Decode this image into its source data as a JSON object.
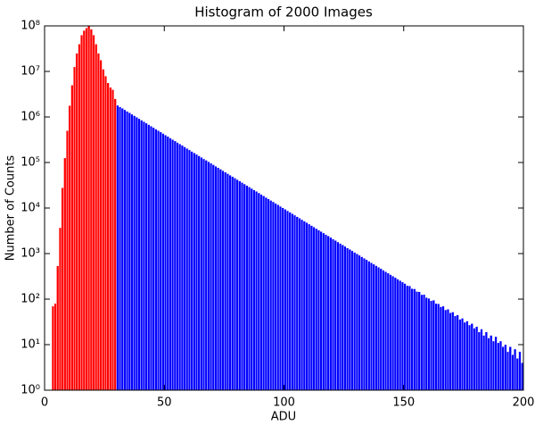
{
  "chart_data": {
    "type": "histogram",
    "title": "Histogram of 2000 Images",
    "xlabel": "ADU",
    "ylabel": "Number of Counts",
    "logy": true,
    "grid": false,
    "xlim": [
      0,
      200
    ],
    "xticks": [
      0,
      50,
      100,
      150,
      200
    ],
    "ylim": [
      1,
      100000000
    ],
    "yticks": [
      {
        "value": 1,
        "label": "10⁰"
      },
      {
        "value": 10,
        "label": "10¹"
      },
      {
        "value": 100,
        "label": "10²"
      },
      {
        "value": 1000,
        "label": "10³"
      },
      {
        "value": 10000,
        "label": "10⁴"
      },
      {
        "value": 100000,
        "label": "10⁵"
      },
      {
        "value": 1000000,
        "label": "10⁶"
      },
      {
        "value": 10000000,
        "label": "10⁷"
      },
      {
        "value": 100000000,
        "label": "10⁸"
      }
    ],
    "series": [
      {
        "color": "#ff0000",
        "bins": [
          3,
          4,
          5,
          6,
          7,
          8,
          9,
          10,
          11,
          12,
          13,
          14,
          15,
          16,
          17,
          18,
          19,
          20,
          21,
          22,
          23,
          24,
          25,
          26,
          27,
          28,
          29,
          30
        ],
        "counts": [
          70,
          80,
          540,
          3700,
          28000,
          126000,
          500000,
          1780000,
          5000000,
          12600000,
          25100000,
          39800000,
          63100000,
          79400000,
          90000000,
          100000000,
          85000000,
          63100000,
          39800000,
          25100000,
          17800000,
          11200000,
          7940000,
          5620000,
          4470000,
          3980000,
          2510000
        ]
      },
      {
        "color": "#0000ff",
        "bins": [
          30,
          31,
          32,
          33,
          34,
          35,
          36,
          37,
          38,
          39,
          40,
          41,
          42,
          43,
          44,
          45,
          46,
          47,
          48,
          49,
          50,
          51,
          52,
          53,
          54,
          55,
          56,
          57,
          58,
          59,
          60,
          61,
          62,
          63,
          64,
          65,
          66,
          67,
          68,
          69,
          70,
          71,
          72,
          73,
          74,
          75,
          76,
          77,
          78,
          79,
          80,
          81,
          82,
          83,
          84,
          85,
          86,
          87,
          88,
          89,
          90,
          91,
          92,
          93,
          94,
          95,
          96,
          97,
          98,
          99,
          100,
          101,
          102,
          103,
          104,
          105,
          106,
          107,
          108,
          109,
          110,
          111,
          112,
          113,
          114,
          115,
          116,
          117,
          118,
          119,
          120,
          121,
          122,
          123,
          124,
          125,
          126,
          127,
          128,
          129,
          130,
          131,
          132,
          133,
          134,
          135,
          136,
          137,
          138,
          139,
          140,
          141,
          142,
          143,
          144,
          145,
          146,
          147,
          148,
          149,
          150,
          151,
          152,
          153,
          154,
          155,
          156,
          157,
          158,
          159,
          160,
          161,
          162,
          163,
          164,
          165,
          166,
          167,
          168,
          169,
          170,
          171,
          172,
          173,
          174,
          175,
          176,
          177,
          178,
          179,
          180,
          181,
          182,
          183,
          184,
          185,
          186,
          187,
          188,
          189,
          190,
          191,
          192,
          193,
          194,
          195,
          196,
          197,
          198,
          199,
          200
        ],
        "counts": [
          1800000,
          1670000,
          1549000,
          1437000,
          1333000,
          1237000,
          1147000,
          1064000,
          987000,
          916000,
          850000,
          789000,
          732000,
          678000,
          630000,
          584000,
          541000,
          502000,
          467000,
          433000,
          401000,
          372000,
          345000,
          320000,
          297000,
          275000,
          255000,
          237000,
          220000,
          204000,
          189000,
          175000,
          163000,
          151000,
          140000,
          130000,
          120000,
          112000,
          104000,
          96200,
          89300,
          82900,
          76900,
          71300,
          66200,
          61300,
          56900,
          52800,
          49000,
          45500,
          42200,
          39200,
          36300,
          33700,
          31300,
          29000,
          26900,
          24900,
          23200,
          21500,
          19900,
          18500,
          17100,
          15900,
          14700,
          13700,
          12700,
          11800,
          10900,
          10100,
          9400,
          8720,
          8090,
          7500,
          6970,
          6460,
          5990,
          5560,
          5160,
          4780,
          4440,
          4120,
          3820,
          3540,
          3290,
          3050,
          2830,
          2620,
          2440,
          2260,
          2090,
          1940,
          1800,
          1670,
          1550,
          1440,
          1330,
          1240,
          1150,
          1060,
          988,
          917,
          851,
          788,
          732,
          679,
          629,
          584,
          542,
          503,
          466,
          432,
          401,
          372,
          345,
          320,
          297,
          275,
          256,
          237,
          220,
          198,
          195,
          170,
          168,
          147,
          145,
          125,
          126,
          108,
          104,
          92,
          95,
          80,
          79,
          68,
          70,
          58,
          60,
          50,
          52,
          43,
          45,
          36,
          38,
          31,
          33,
          27,
          29,
          23,
          25,
          19,
          22,
          16,
          19,
          14,
          16,
          12,
          15,
          11,
          12,
          9,
          10,
          7,
          9,
          6,
          8,
          5,
          7,
          4
        ]
      }
    ]
  }
}
